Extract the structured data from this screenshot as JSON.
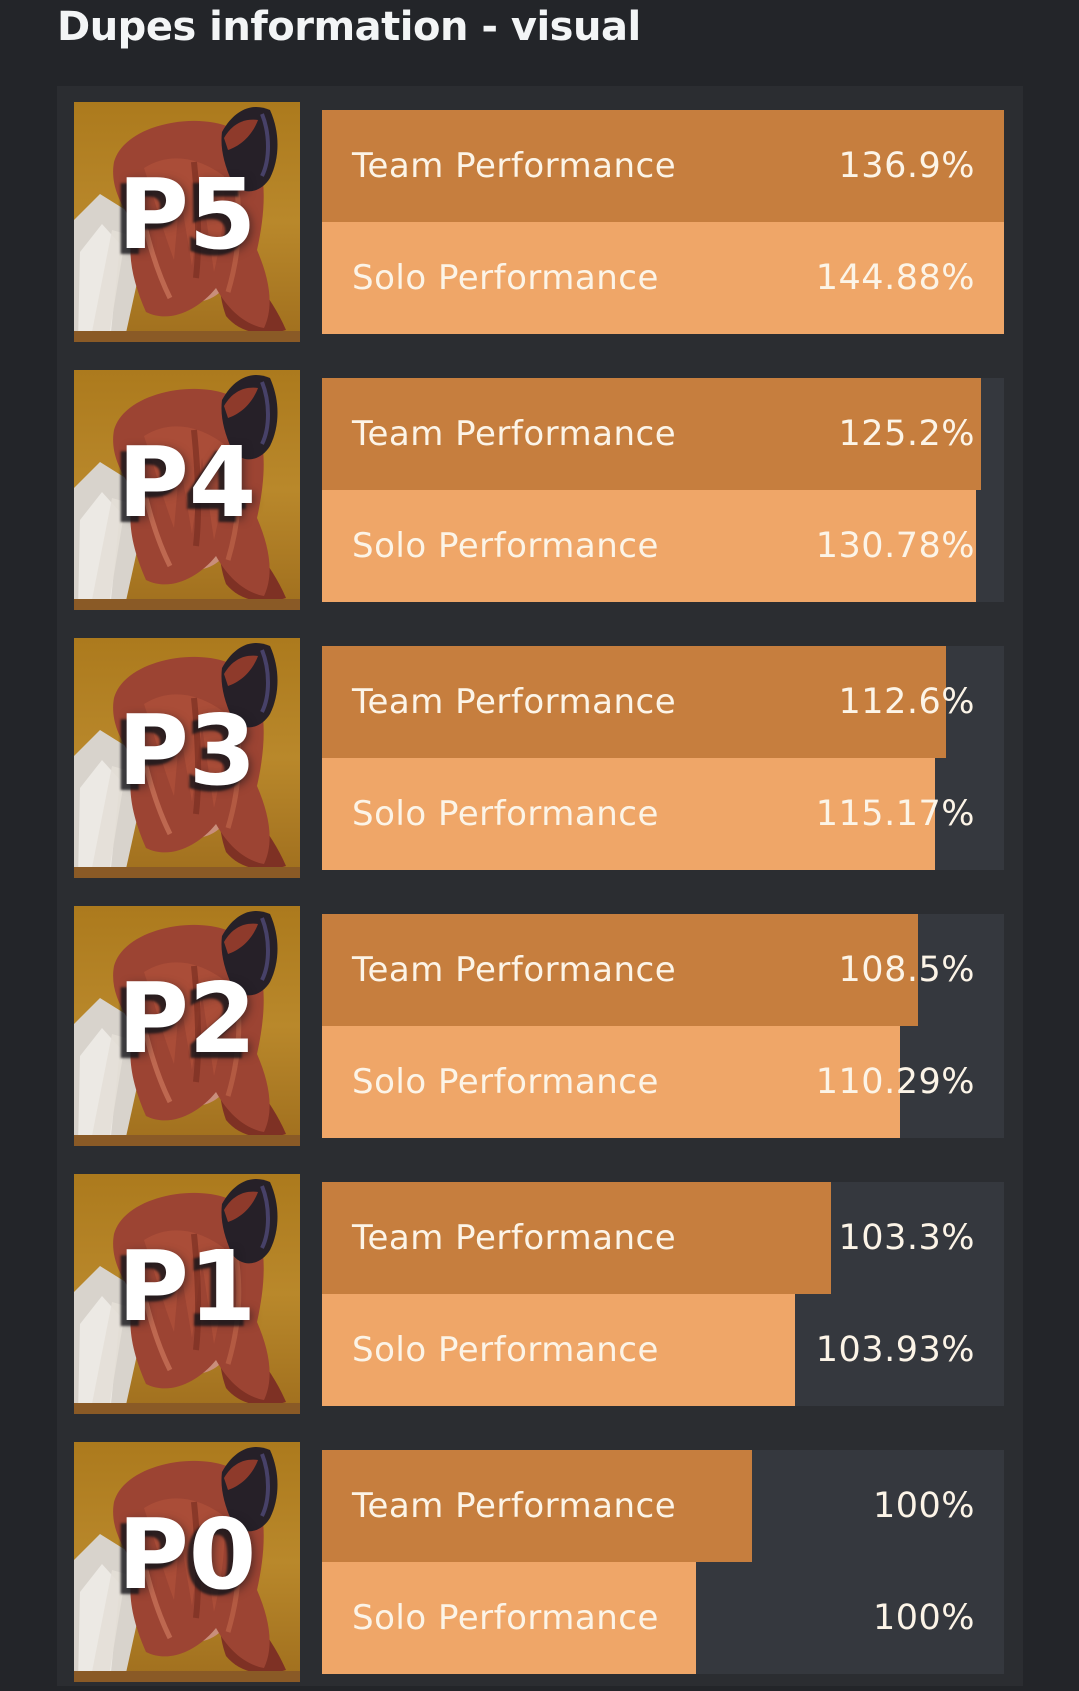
{
  "title": "Dupes information - visual",
  "colors": {
    "page_background": "#232529",
    "panel_background": "#2b2d31",
    "bar_track": "#35383e",
    "team_bar": "#c67e3e",
    "solo_bar": "#efa668",
    "bar_text": "#fcf4e7",
    "title_text": "#f3f5f6",
    "avatar_background_gold": "#b9882b",
    "potential_label_text": "#ffffff"
  },
  "chart_data": {
    "type": "bar",
    "orientation": "horizontal",
    "title": "Dupes information - visual",
    "categories": [
      "P5",
      "P4",
      "P3",
      "P2",
      "P1",
      "P0"
    ],
    "series": [
      {
        "name": "Team Performance",
        "unit": "%",
        "color": "#c67e3e",
        "values": [
          136.9,
          125.2,
          112.6,
          108.5,
          103.3,
          100
        ],
        "bar_length_pct_as_drawn": [
          100,
          96.6,
          91.5,
          87.4,
          74.7,
          63.1
        ]
      },
      {
        "name": "Solo Performance",
        "unit": "%",
        "color": "#efa668",
        "values": [
          144.88,
          130.78,
          115.17,
          110.29,
          103.93,
          100
        ],
        "bar_length_pct_as_drawn": [
          100,
          95.9,
          89.9,
          84.8,
          69.3,
          54.9
        ]
      }
    ],
    "value_labels_visible": true,
    "value_label_alignment": "right",
    "category_label_style": "large white text over character avatar",
    "legend_position": "none",
    "grid": false
  },
  "rows": [
    {
      "potential": "P5",
      "team": {
        "label": "Team Performance",
        "value_text": "136.9%",
        "width_pct": 100
      },
      "solo": {
        "label": "Solo Performance",
        "value_text": "144.88%",
        "width_pct": 100
      }
    },
    {
      "potential": "P4",
      "team": {
        "label": "Team Performance",
        "value_text": "125.2%",
        "width_pct": 96.6
      },
      "solo": {
        "label": "Solo Performance",
        "value_text": "130.78%",
        "width_pct": 95.9
      }
    },
    {
      "potential": "P3",
      "team": {
        "label": "Team Performance",
        "value_text": "112.6%",
        "width_pct": 91.5
      },
      "solo": {
        "label": "Solo Performance",
        "value_text": "115.17%",
        "width_pct": 89.9
      }
    },
    {
      "potential": "P2",
      "team": {
        "label": "Team Performance",
        "value_text": "108.5%",
        "width_pct": 87.4
      },
      "solo": {
        "label": "Solo Performance",
        "value_text": "110.29%",
        "width_pct": 84.8
      }
    },
    {
      "potential": "P1",
      "team": {
        "label": "Team Performance",
        "value_text": "103.3%",
        "width_pct": 74.7
      },
      "solo": {
        "label": "Solo Performance",
        "value_text": "103.93%",
        "width_pct": 69.3
      }
    },
    {
      "potential": "P0",
      "team": {
        "label": "Team Performance",
        "value_text": "100%",
        "width_pct": 63.1
      },
      "solo": {
        "label": "Solo Performance",
        "value_text": "100%",
        "width_pct": 54.9
      }
    }
  ]
}
